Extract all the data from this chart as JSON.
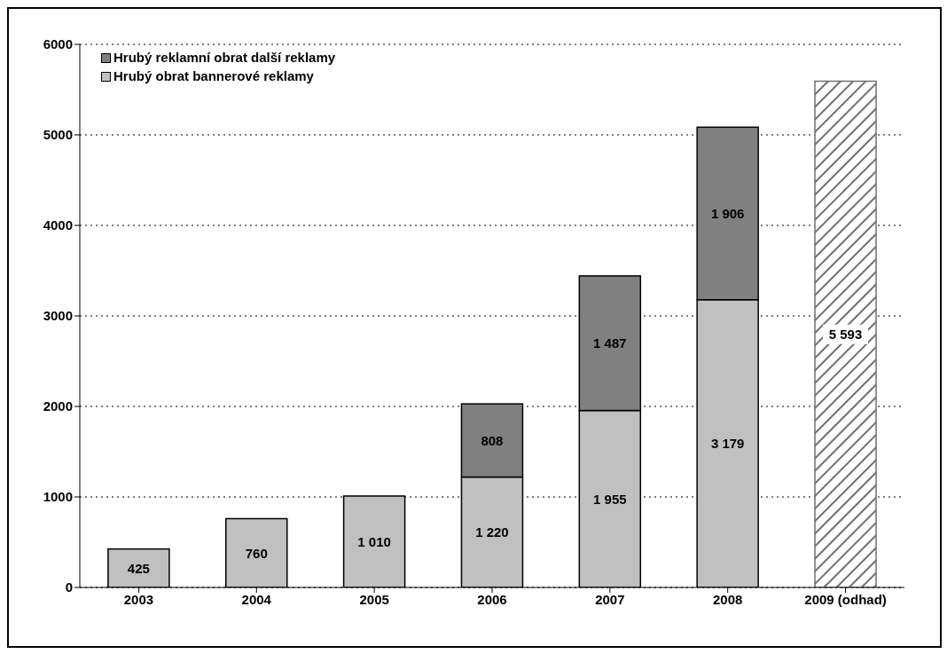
{
  "chart_data": {
    "type": "bar",
    "stacked": true,
    "categories": [
      "2003",
      "2004",
      "2005",
      "2006",
      "2007",
      "2008",
      "2009 (odhad)"
    ],
    "series": [
      {
        "name": "Hrubý obrat bannerové reklamy",
        "color": "#c0c0c0",
        "values": [
          425,
          760,
          1010,
          1220,
          1955,
          3179,
          null
        ],
        "value_labels": [
          "425",
          "760",
          "1 010",
          "1 220",
          "1 955",
          "3 179",
          null
        ]
      },
      {
        "name": "Hrubý reklamní obrat další reklamy",
        "color": "#808080",
        "values": [
          null,
          null,
          null,
          808,
          1487,
          1906,
          null
        ],
        "value_labels": [
          null,
          null,
          null,
          "808",
          "1 487",
          "1 906",
          null
        ]
      },
      {
        "color": "#707070",
        "values": [
          null,
          null,
          null,
          null,
          null,
          null,
          5593
        ],
        "value_labels": [
          null,
          null,
          null,
          null,
          null,
          null,
          "5 593"
        ]
      }
    ],
    "ylim": [
      0,
      6000
    ],
    "yticks": [
      0,
      1000,
      2000,
      3000,
      4000,
      5000,
      6000
    ],
    "grid": "y",
    "legend": "top left"
  }
}
